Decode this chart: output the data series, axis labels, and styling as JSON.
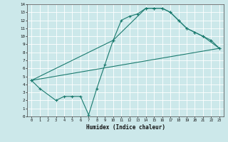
{
  "title": "",
  "xlabel": "Humidex (Indice chaleur)",
  "bg_color": "#cce8ea",
  "grid_color": "#ffffff",
  "line_color": "#1a7a6e",
  "xlim": [
    -0.5,
    23.5
  ],
  "ylim": [
    0,
    14
  ],
  "xticks": [
    0,
    1,
    2,
    3,
    4,
    5,
    6,
    7,
    8,
    9,
    10,
    11,
    12,
    13,
    14,
    15,
    16,
    17,
    18,
    19,
    20,
    21,
    22,
    23
  ],
  "yticks": [
    0,
    1,
    2,
    3,
    4,
    5,
    6,
    7,
    8,
    9,
    10,
    11,
    12,
    13,
    14
  ],
  "line1_x": [
    0,
    1,
    3,
    4,
    5,
    6,
    7,
    8,
    9,
    10,
    11,
    12,
    13,
    14,
    15,
    16,
    17,
    18,
    19,
    20,
    21,
    22,
    23
  ],
  "line1_y": [
    4.5,
    3.5,
    2.0,
    2.5,
    2.5,
    2.5,
    0.2,
    3.5,
    6.5,
    9.5,
    12.0,
    12.5,
    12.8,
    13.5,
    13.5,
    13.5,
    13.0,
    12.0,
    11.0,
    10.5,
    10.0,
    9.5,
    8.5
  ],
  "line2_x": [
    0,
    23
  ],
  "line2_y": [
    4.5,
    8.5
  ],
  "line3_x": [
    0,
    10,
    14,
    15,
    16,
    17,
    18,
    19,
    20,
    21,
    23
  ],
  "line3_y": [
    4.5,
    9.5,
    13.5,
    13.5,
    13.5,
    13.0,
    12.0,
    11.0,
    10.5,
    10.0,
    8.5
  ]
}
